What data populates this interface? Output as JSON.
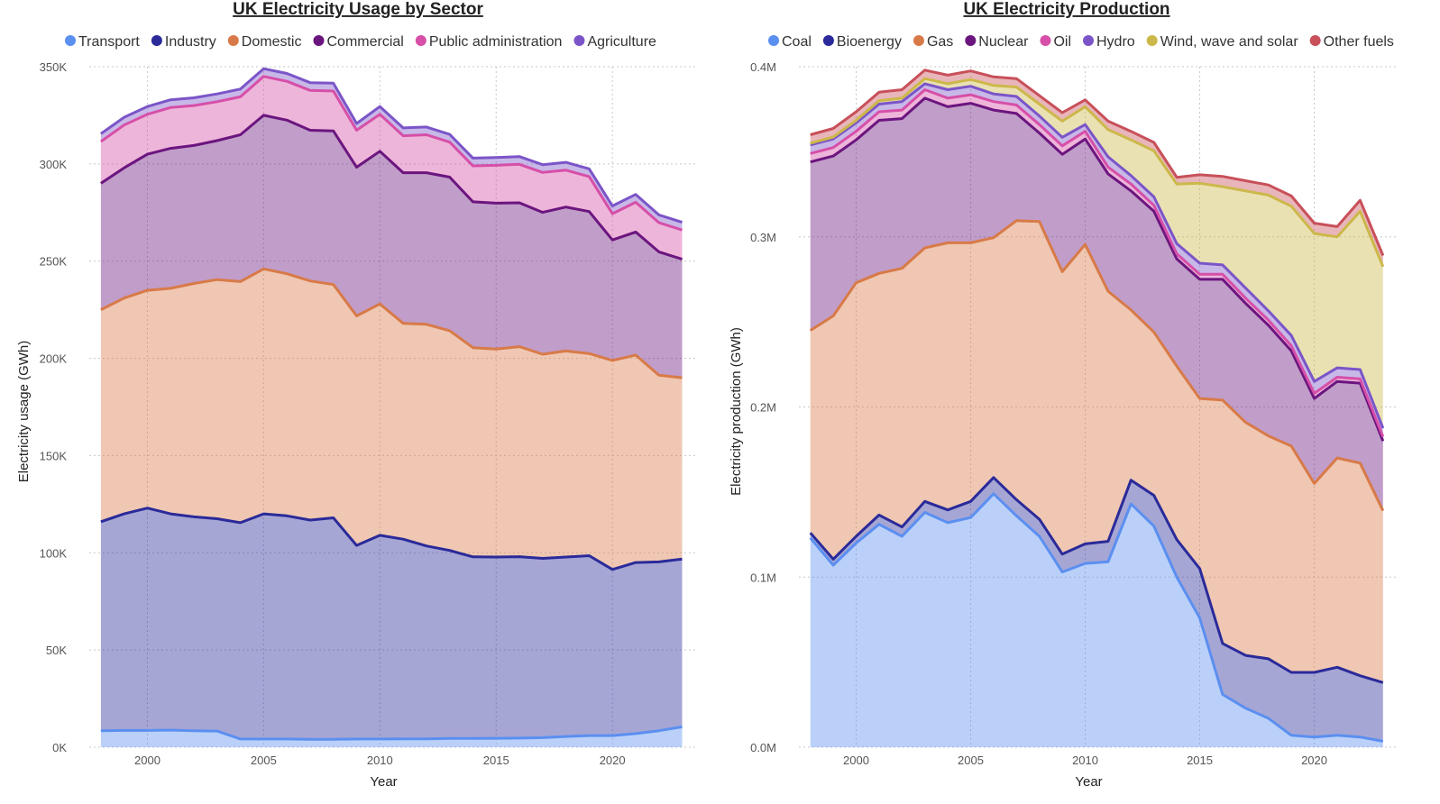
{
  "chart_data": [
    {
      "type": "area",
      "title": "UK Electricity Usage by Sector",
      "xlabel": "Year",
      "ylabel": "Electricity usage (GWh)",
      "stacked": true,
      "x": [
        1998,
        1999,
        2000,
        2001,
        2002,
        2003,
        2004,
        2005,
        2006,
        2007,
        2008,
        2009,
        2010,
        2011,
        2012,
        2013,
        2014,
        2015,
        2016,
        2017,
        2018,
        2019,
        2020,
        2021,
        2022,
        2023
      ],
      "xticks": [
        2000,
        2005,
        2010,
        2015,
        2020
      ],
      "xlim": [
        1997.5,
        2023.6
      ],
      "ylim": [
        0,
        350000
      ],
      "yticks": [
        0,
        50000,
        100000,
        150000,
        200000,
        250000,
        300000,
        350000
      ],
      "ytick_labels": [
        "0K",
        "50K",
        "100K",
        "150K",
        "200K",
        "250K",
        "300K",
        "350K"
      ],
      "grid": true,
      "legend_position": "top",
      "series": [
        {
          "name": "Transport",
          "color": "#5b8ff0",
          "values": [
            8500,
            8600,
            8600,
            8800,
            8500,
            8300,
            4200,
            4200,
            4200,
            4100,
            4100,
            4200,
            4200,
            4300,
            4300,
            4500,
            4500,
            4600,
            4700,
            4900,
            5500,
            6000,
            6000,
            7000,
            8500,
            10500
          ]
        },
        {
          "name": "Industry",
          "color": "#2a2a9a",
          "values": [
            107500,
            111400,
            114400,
            111200,
            110000,
            109200,
            111300,
            115800,
            114800,
            112700,
            113900,
            99600,
            104800,
            102700,
            99200,
            96700,
            93400,
            93200,
            93300,
            92200,
            92300,
            92500,
            85400,
            88000,
            86800,
            86300
          ]
        },
        {
          "name": "Domestic",
          "color": "#d87a48",
          "values": [
            109000,
            111000,
            112000,
            116000,
            120000,
            123000,
            124000,
            126000,
            124500,
            123000,
            120000,
            118000,
            119000,
            111000,
            114000,
            113000,
            107600,
            107000,
            108000,
            105000,
            106000,
            104000,
            107500,
            106700,
            96000,
            93200
          ]
        },
        {
          "name": "Commercial",
          "color": "#6b157e",
          "values": [
            65000,
            67000,
            70000,
            72000,
            71000,
            71500,
            75500,
            79000,
            79000,
            77500,
            79000,
            76500,
            78500,
            77500,
            78000,
            79000,
            75000,
            75000,
            74000,
            73000,
            74000,
            73000,
            62000,
            63300,
            63500,
            61000
          ]
        },
        {
          "name": "Public administration",
          "color": "#d64fa8",
          "values": [
            21500,
            22000,
            20500,
            21000,
            20500,
            20000,
            19500,
            20000,
            20000,
            20500,
            20500,
            19000,
            19000,
            19000,
            19500,
            18000,
            18500,
            19500,
            19800,
            20500,
            19000,
            18000,
            13500,
            15300,
            15000,
            15000
          ]
        },
        {
          "name": "Agriculture",
          "color": "#7b55c8",
          "values": [
            4000,
            4000,
            4000,
            4000,
            4000,
            4000,
            4000,
            4000,
            4000,
            4000,
            4000,
            3500,
            4000,
            4000,
            4000,
            4000,
            4000,
            4000,
            4000,
            4000,
            4000,
            4000,
            4000,
            4000,
            4000,
            4000
          ]
        }
      ]
    },
    {
      "type": "area",
      "title": "UK Electricity Production",
      "xlabel": "Year",
      "ylabel": "Electricity production (GWh)",
      "stacked": true,
      "x": [
        1998,
        1999,
        2000,
        2001,
        2002,
        2003,
        2004,
        2005,
        2006,
        2007,
        2008,
        2009,
        2010,
        2011,
        2012,
        2013,
        2014,
        2015,
        2016,
        2017,
        2018,
        2019,
        2020,
        2021,
        2022,
        2023
      ],
      "xticks": [
        2000,
        2005,
        2010,
        2015,
        2020
      ],
      "xlim": [
        1997.5,
        2023.6
      ],
      "ylim": [
        0,
        400000
      ],
      "yticks": [
        0,
        100000,
        200000,
        300000,
        400000
      ],
      "ytick_labels": [
        "0.0M",
        "0.1M",
        "0.2M",
        "0.3M",
        "0.4M"
      ],
      "grid": true,
      "legend_position": "top",
      "series": [
        {
          "name": "Coal",
          "color": "#5b8ff0",
          "values": [
            123000,
            107000,
            120000,
            131000,
            124000,
            138000,
            132000,
            135000,
            149000,
            136000,
            124000,
            103000,
            108000,
            109000,
            143000,
            130000,
            100000,
            76000,
            31000,
            23000,
            17000,
            7000,
            6000,
            7000,
            6000,
            3500
          ]
        },
        {
          "name": "Bioenergy",
          "color": "#2a2a9a",
          "values": [
            3000,
            3500,
            4000,
            5500,
            5500,
            6500,
            7500,
            9500,
            9500,
            9500,
            10000,
            10500,
            11500,
            12000,
            14000,
            18000,
            22000,
            29000,
            30000,
            31000,
            35000,
            37000,
            38000,
            40000,
            36000,
            34500
          ]
        },
        {
          "name": "Gas",
          "color": "#d87a48",
          "values": [
            119000,
            143000,
            149000,
            142000,
            152000,
            149000,
            157000,
            152000,
            141000,
            164000,
            175000,
            166000,
            176000,
            147000,
            100000,
            96000,
            102000,
            100000,
            143000,
            137000,
            131000,
            133000,
            111000,
            123000,
            125000,
            101000
          ]
        },
        {
          "name": "Nuclear",
          "color": "#6b157e",
          "values": [
            99000,
            94000,
            84000,
            90000,
            88000,
            88000,
            80000,
            82000,
            75000,
            63000,
            52000,
            69000,
            62000,
            69000,
            70000,
            71000,
            63000,
            70000,
            71000,
            70000,
            65000,
            56000,
            50000,
            45000,
            47000,
            41000
          ]
        },
        {
          "name": "Oil",
          "color": "#d64fa8",
          "values": [
            5000,
            5000,
            5000,
            5000,
            5000,
            5000,
            5000,
            5000,
            5000,
            5000,
            5000,
            5000,
            4500,
            4000,
            4000,
            3500,
            3000,
            3000,
            3000,
            3000,
            3000,
            3000,
            3000,
            2500,
            2500,
            2500
          ]
        },
        {
          "name": "Hydro",
          "color": "#7b55c8",
          "values": [
            5000,
            5000,
            5000,
            4500,
            5000,
            3500,
            5000,
            5000,
            4500,
            5000,
            5000,
            5000,
            4000,
            6000,
            5000,
            5000,
            6000,
            6500,
            5500,
            6000,
            5500,
            6000,
            7000,
            5500,
            5500,
            5000
          ]
        },
        {
          "name": "Wind, wave and solar",
          "color": "#ccb84a",
          "values": [
            1000,
            1200,
            1500,
            2000,
            2000,
            3000,
            3500,
            4000,
            5000,
            5500,
            7000,
            9500,
            10500,
            16000,
            21000,
            27000,
            35000,
            47000,
            46000,
            57000,
            68000,
            76000,
            87000,
            77000,
            93000,
            95000
          ]
        },
        {
          "name": "Other fuels",
          "color": "#c8505a",
          "values": [
            5000,
            5000,
            5000,
            5000,
            5000,
            5000,
            5000,
            5000,
            5000,
            5000,
            5000,
            5000,
            4000,
            5000,
            5000,
            5000,
            4000,
            5000,
            6000,
            6000,
            6000,
            6000,
            6000,
            6000,
            6500,
            6500
          ]
        }
      ]
    }
  ]
}
